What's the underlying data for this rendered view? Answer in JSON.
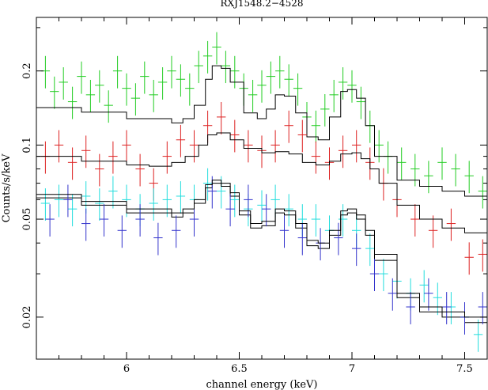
{
  "chart_data": {
    "type": "scatter",
    "title": "RXJ1548.2−4528",
    "xlabel": "channel energy (keV)",
    "ylabel": "Counts/s/keV",
    "xlim": [
      5.6,
      7.6
    ],
    "ylim": [
      0.0135,
      0.33
    ],
    "yscale": "log",
    "x_ticks": [
      "6",
      "6.5",
      "7",
      "7.5"
    ],
    "x_tick_values": [
      6,
      6.5,
      7,
      7.5
    ],
    "y_ticks": [
      "0.02",
      "0.05",
      "0.1",
      "0.2"
    ],
    "y_tick_values": [
      0.02,
      0.05,
      0.1,
      0.2
    ],
    "grid": false,
    "legend": "none",
    "series": [
      {
        "color": "#22cc22",
        "model": [
          [
            5.6,
            0.142
          ],
          [
            5.8,
            0.136
          ],
          [
            6.0,
            0.128
          ],
          [
            6.2,
            0.123
          ],
          [
            6.25,
            0.128
          ],
          [
            6.3,
            0.145
          ],
          [
            6.35,
            0.185
          ],
          [
            6.38,
            0.21
          ],
          [
            6.42,
            0.205
          ],
          [
            6.46,
            0.18
          ],
          [
            6.52,
            0.135
          ],
          [
            6.58,
            0.128
          ],
          [
            6.62,
            0.14
          ],
          [
            6.66,
            0.16
          ],
          [
            6.7,
            0.158
          ],
          [
            6.75,
            0.135
          ],
          [
            6.8,
            0.108
          ],
          [
            6.85,
            0.105
          ],
          [
            6.9,
            0.13
          ],
          [
            6.95,
            0.165
          ],
          [
            6.98,
            0.168
          ],
          [
            7.02,
            0.155
          ],
          [
            7.06,
            0.12
          ],
          [
            7.1,
            0.09
          ],
          [
            7.2,
            0.072
          ],
          [
            7.3,
            0.068
          ],
          [
            7.4,
            0.065
          ],
          [
            7.5,
            0.062
          ],
          [
            7.6,
            0.06
          ]
        ],
        "points": [
          [
            5.64,
            0.2
          ],
          [
            5.68,
            0.165
          ],
          [
            5.72,
            0.18
          ],
          [
            5.76,
            0.15
          ],
          [
            5.8,
            0.19
          ],
          [
            5.84,
            0.16
          ],
          [
            5.88,
            0.175
          ],
          [
            5.92,
            0.145
          ],
          [
            5.96,
            0.2
          ],
          [
            6.0,
            0.17
          ],
          [
            6.04,
            0.155
          ],
          [
            6.08,
            0.19
          ],
          [
            6.12,
            0.16
          ],
          [
            6.16,
            0.18
          ],
          [
            6.2,
            0.2
          ],
          [
            6.24,
            0.185
          ],
          [
            6.28,
            0.17
          ],
          [
            6.32,
            0.21
          ],
          [
            6.36,
            0.23
          ],
          [
            6.4,
            0.25
          ],
          [
            6.44,
            0.21
          ],
          [
            6.48,
            0.2
          ],
          [
            6.52,
            0.17
          ],
          [
            6.56,
            0.16
          ],
          [
            6.6,
            0.175
          ],
          [
            6.64,
            0.19
          ],
          [
            6.68,
            0.2
          ],
          [
            6.72,
            0.185
          ],
          [
            6.76,
            0.17
          ],
          [
            6.8,
            0.13
          ],
          [
            6.84,
            0.12
          ],
          [
            6.88,
            0.14
          ],
          [
            6.92,
            0.16
          ],
          [
            6.96,
            0.18
          ],
          [
            7.0,
            0.175
          ],
          [
            7.04,
            0.15
          ],
          [
            7.08,
            0.12
          ],
          [
            7.12,
            0.1
          ],
          [
            7.16,
            0.09
          ],
          [
            7.22,
            0.085
          ],
          [
            7.28,
            0.08
          ],
          [
            7.34,
            0.075
          ],
          [
            7.4,
            0.085
          ],
          [
            7.46,
            0.08
          ],
          [
            7.52,
            0.075
          ],
          [
            7.58,
            0.065
          ]
        ]
      },
      {
        "color": "#dd2222",
        "model": [
          [
            5.6,
            0.09
          ],
          [
            5.8,
            0.086
          ],
          [
            6.0,
            0.083
          ],
          [
            6.1,
            0.082
          ],
          [
            6.2,
            0.085
          ],
          [
            6.26,
            0.09
          ],
          [
            6.32,
            0.1
          ],
          [
            6.36,
            0.11
          ],
          [
            6.4,
            0.112
          ],
          [
            6.46,
            0.105
          ],
          [
            6.52,
            0.097
          ],
          [
            6.6,
            0.093
          ],
          [
            6.66,
            0.094
          ],
          [
            6.72,
            0.092
          ],
          [
            6.78,
            0.085
          ],
          [
            6.84,
            0.083
          ],
          [
            6.9,
            0.086
          ],
          [
            6.95,
            0.092
          ],
          [
            7.0,
            0.093
          ],
          [
            7.04,
            0.088
          ],
          [
            7.08,
            0.08
          ],
          [
            7.12,
            0.07
          ],
          [
            7.2,
            0.057
          ],
          [
            7.3,
            0.05
          ],
          [
            7.4,
            0.046
          ],
          [
            7.5,
            0.044
          ],
          [
            7.6,
            0.042
          ]
        ],
        "points": [
          [
            5.64,
            0.09
          ],
          [
            5.7,
            0.1
          ],
          [
            5.76,
            0.085
          ],
          [
            5.82,
            0.095
          ],
          [
            5.88,
            0.08
          ],
          [
            5.94,
            0.09
          ],
          [
            6.0,
            0.1
          ],
          [
            6.06,
            0.08
          ],
          [
            6.12,
            0.07
          ],
          [
            6.18,
            0.09
          ],
          [
            6.24,
            0.105
          ],
          [
            6.3,
            0.1
          ],
          [
            6.36,
            0.12
          ],
          [
            6.42,
            0.13
          ],
          [
            6.48,
            0.11
          ],
          [
            6.54,
            0.1
          ],
          [
            6.6,
            0.095
          ],
          [
            6.66,
            0.1
          ],
          [
            6.72,
            0.12
          ],
          [
            6.78,
            0.11
          ],
          [
            6.84,
            0.09
          ],
          [
            6.9,
            0.085
          ],
          [
            6.96,
            0.095
          ],
          [
            7.02,
            0.1
          ],
          [
            7.08,
            0.085
          ],
          [
            7.14,
            0.07
          ],
          [
            7.2,
            0.06
          ],
          [
            7.28,
            0.05
          ],
          [
            7.36,
            0.045
          ],
          [
            7.44,
            0.048
          ],
          [
            7.52,
            0.035
          ],
          [
            7.58,
            0.036
          ]
        ]
      },
      {
        "color": "#22dddd",
        "model": [
          [
            5.6,
            0.061
          ],
          [
            5.8,
            0.057
          ],
          [
            6.0,
            0.053
          ],
          [
            6.2,
            0.051
          ],
          [
            6.25,
            0.053
          ],
          [
            6.3,
            0.058
          ],
          [
            6.35,
            0.067
          ],
          [
            6.38,
            0.07
          ],
          [
            6.42,
            0.068
          ],
          [
            6.46,
            0.062
          ],
          [
            6.5,
            0.052
          ],
          [
            6.55,
            0.046
          ],
          [
            6.6,
            0.047
          ],
          [
            6.66,
            0.053
          ],
          [
            6.7,
            0.052
          ],
          [
            6.75,
            0.046
          ],
          [
            6.8,
            0.039
          ],
          [
            6.85,
            0.038
          ],
          [
            6.9,
            0.043
          ],
          [
            6.95,
            0.052
          ],
          [
            6.98,
            0.053
          ],
          [
            7.02,
            0.05
          ],
          [
            7.06,
            0.043
          ],
          [
            7.1,
            0.034
          ],
          [
            7.2,
            0.024
          ],
          [
            7.3,
            0.021
          ],
          [
            7.4,
            0.02
          ],
          [
            7.5,
            0.019
          ],
          [
            7.6,
            0.018
          ]
        ],
        "points": [
          [
            5.64,
            0.058
          ],
          [
            5.7,
            0.06
          ],
          [
            5.76,
            0.055
          ],
          [
            5.82,
            0.062
          ],
          [
            5.88,
            0.058
          ],
          [
            5.94,
            0.065
          ],
          [
            6.0,
            0.06
          ],
          [
            6.06,
            0.055
          ],
          [
            6.12,
            0.058
          ],
          [
            6.18,
            0.06
          ],
          [
            6.24,
            0.062
          ],
          [
            6.3,
            0.06
          ],
          [
            6.36,
            0.07
          ],
          [
            6.42,
            0.065
          ],
          [
            6.48,
            0.06
          ],
          [
            6.54,
            0.055
          ],
          [
            6.6,
            0.057
          ],
          [
            6.66,
            0.06
          ],
          [
            6.72,
            0.055
          ],
          [
            6.78,
            0.05
          ],
          [
            6.84,
            0.05
          ],
          [
            6.9,
            0.045
          ],
          [
            6.96,
            0.05
          ],
          [
            7.02,
            0.045
          ],
          [
            7.08,
            0.038
          ],
          [
            7.14,
            0.03
          ],
          [
            7.2,
            0.028
          ],
          [
            7.26,
            0.025
          ],
          [
            7.32,
            0.027
          ],
          [
            7.38,
            0.024
          ],
          [
            7.44,
            0.022
          ],
          [
            7.5,
            0.02
          ],
          [
            7.56,
            0.017
          ]
        ]
      },
      {
        "color": "#3333cc",
        "model": [
          [
            5.6,
            0.063
          ],
          [
            5.8,
            0.059
          ],
          [
            6.0,
            0.055
          ],
          [
            6.2,
            0.053
          ],
          [
            6.25,
            0.055
          ],
          [
            6.3,
            0.06
          ],
          [
            6.35,
            0.069
          ],
          [
            6.38,
            0.072
          ],
          [
            6.42,
            0.07
          ],
          [
            6.46,
            0.064
          ],
          [
            6.5,
            0.054
          ],
          [
            6.55,
            0.048
          ],
          [
            6.6,
            0.049
          ],
          [
            6.66,
            0.055
          ],
          [
            6.7,
            0.054
          ],
          [
            6.75,
            0.048
          ],
          [
            6.8,
            0.041
          ],
          [
            6.85,
            0.04
          ],
          [
            6.9,
            0.045
          ],
          [
            6.95,
            0.054
          ],
          [
            6.98,
            0.055
          ],
          [
            7.02,
            0.052
          ],
          [
            7.06,
            0.045
          ],
          [
            7.1,
            0.036
          ],
          [
            7.2,
            0.025
          ],
          [
            7.3,
            0.022
          ],
          [
            7.4,
            0.021
          ],
          [
            7.5,
            0.02
          ],
          [
            7.6,
            0.019
          ]
        ],
        "points": [
          [
            5.66,
            0.05
          ],
          [
            5.74,
            0.06
          ],
          [
            5.82,
            0.048
          ],
          [
            5.9,
            0.05
          ],
          [
            5.98,
            0.045
          ],
          [
            6.06,
            0.05
          ],
          [
            6.14,
            0.042
          ],
          [
            6.22,
            0.045
          ],
          [
            6.3,
            0.05
          ],
          [
            6.38,
            0.065
          ],
          [
            6.46,
            0.055
          ],
          [
            6.54,
            0.06
          ],
          [
            6.62,
            0.055
          ],
          [
            6.7,
            0.045
          ],
          [
            6.78,
            0.042
          ],
          [
            6.86,
            0.04
          ],
          [
            6.94,
            0.042
          ],
          [
            7.02,
            0.038
          ],
          [
            7.1,
            0.03
          ],
          [
            7.18,
            0.025
          ],
          [
            7.26,
            0.022
          ],
          [
            7.34,
            0.025
          ],
          [
            7.42,
            0.022
          ],
          [
            7.5,
            0.02
          ],
          [
            7.58,
            0.022
          ]
        ]
      }
    ]
  }
}
